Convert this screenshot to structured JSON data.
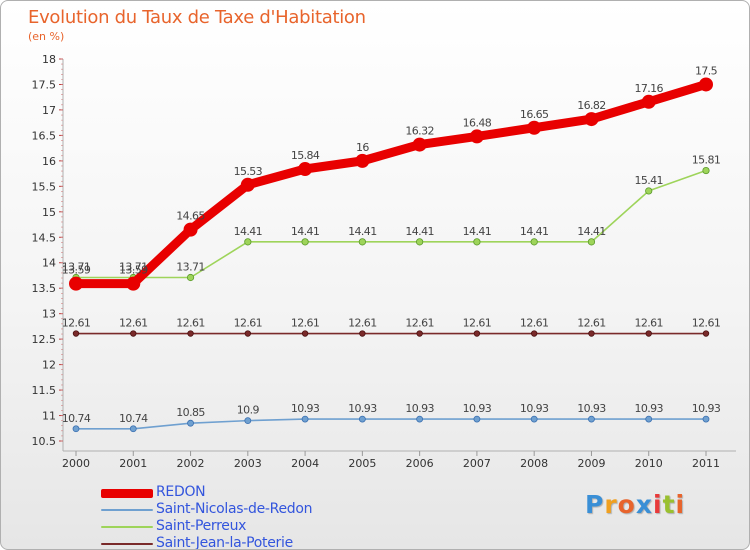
{
  "title": "Evolution du Taux de Taxe d'Habitation",
  "unit": "(en %)",
  "logo": {
    "letters": [
      "P",
      "r",
      "o",
      "x",
      "i",
      "t",
      "i"
    ],
    "colors": [
      "#3a8fd6",
      "#f0a020",
      "#e8642c",
      "#3a8fd6",
      "#e83a3a",
      "#9ac030",
      "#e8642c"
    ]
  },
  "chart_data": {
    "type": "line",
    "title": "Evolution du Taux de Taxe d'Habitation",
    "ylabel": "(en %)",
    "xlabel": "",
    "x": [
      "2000",
      "2001",
      "2002",
      "2003",
      "2004",
      "2005",
      "2006",
      "2007",
      "2008",
      "2009",
      "2010",
      "2011"
    ],
    "ylim": [
      10.5,
      18
    ],
    "yticks": [
      10.5,
      11,
      11.5,
      12,
      12.5,
      13,
      13.5,
      14,
      14.5,
      15,
      15.5,
      16,
      16.5,
      17,
      17.5,
      18
    ],
    "grid": false,
    "legend_position": "bottom-left",
    "series": [
      {
        "name": "REDON",
        "color": "#e80000",
        "values": [
          13.59,
          13.59,
          14.65,
          15.53,
          15.84,
          16,
          16.32,
          16.48,
          16.65,
          16.82,
          17.16,
          17.5
        ],
        "labels": [
          "13.59",
          "13.59",
          "14.65",
          "15.53",
          "15.84",
          "16",
          "16.32",
          "16.48",
          "16.65",
          "16.82",
          "17.16",
          "17.5"
        ]
      },
      {
        "name": "Saint-Nicolas-de-Redon",
        "color": "#6fa0d0",
        "values": [
          10.74,
          10.74,
          10.85,
          10.9,
          10.93,
          10.93,
          10.93,
          10.93,
          10.93,
          10.93,
          10.93,
          10.93
        ],
        "labels": [
          "10.74",
          "10.74",
          "10.85",
          "10.9",
          "10.93",
          "10.93",
          "10.93",
          "10.93",
          "10.93",
          "10.93",
          "10.93",
          "10.93"
        ]
      },
      {
        "name": "Saint-Perreux",
        "color": "#9ed45a",
        "values": [
          13.71,
          13.71,
          13.71,
          14.41,
          14.41,
          14.41,
          14.41,
          14.41,
          14.41,
          14.41,
          15.41,
          15.81
        ],
        "labels": [
          "13.71",
          "13.71",
          "13.71",
          "14.41",
          "14.41",
          "14.41",
          "14.41",
          "14.41",
          "14.41",
          "14.41",
          "15.41",
          "15.81"
        ]
      },
      {
        "name": "Saint-Jean-la-Poterie",
        "color": "#7a2a2a",
        "values": [
          12.61,
          12.61,
          12.61,
          12.61,
          12.61,
          12.61,
          12.61,
          12.61,
          12.61,
          12.61,
          12.61,
          12.61
        ],
        "labels": [
          "12.61",
          "12.61",
          "12.61",
          "12.61",
          "12.61",
          "12.61",
          "12.61",
          "12.61",
          "12.61",
          "12.61",
          "12.61",
          "12.61"
        ]
      }
    ]
  }
}
